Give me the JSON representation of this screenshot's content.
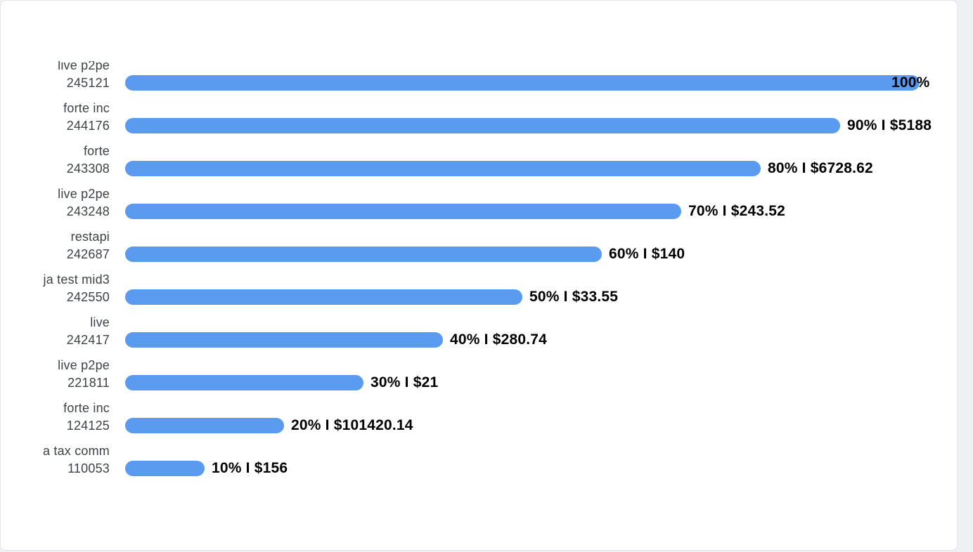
{
  "page": {
    "background_color": "#eef0f4",
    "card_background": "#ffffff",
    "card_border_color": "#e3e5ea"
  },
  "chart_data": {
    "type": "bar",
    "orientation": "horizontal",
    "title": "",
    "xlabel": "",
    "ylabel": "",
    "xlim": [
      0,
      100
    ],
    "grid": false,
    "legend": false,
    "bar_color": "#5a9bf0",
    "value_label_color": "#000000",
    "category_label_color": "#3d4248",
    "categories": [
      {
        "name": "live p2pe",
        "id": "245121"
      },
      {
        "name": "forte inc",
        "id": "244176"
      },
      {
        "name": "forte",
        "id": "243308"
      },
      {
        "name": "live p2pe",
        "id": "243248"
      },
      {
        "name": "restapi",
        "id": "242687"
      },
      {
        "name": "ja test mid3",
        "id": "242550"
      },
      {
        "name": "live",
        "id": "242417"
      },
      {
        "name": "live p2pe",
        "id": "221811"
      },
      {
        "name": "forte inc",
        "id": "124125"
      },
      {
        "name": "a tax comm",
        "id": "110053"
      }
    ],
    "values_percent": [
      100,
      90,
      80,
      70,
      60,
      50,
      40,
      30,
      20,
      10
    ],
    "value_labels": [
      "100%",
      "90% I $5188",
      "80% I $6728.62",
      "70% I $243.52",
      "60% I $140",
      "50% I $33.55",
      "40% I $280.74",
      "30% I $21",
      "20% I $101420.14",
      "10% I $156"
    ]
  }
}
